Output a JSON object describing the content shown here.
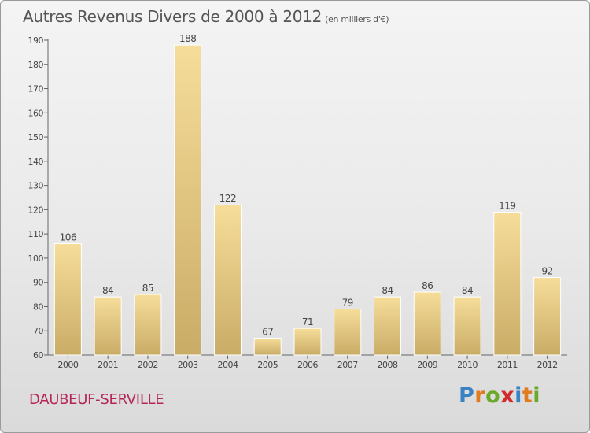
{
  "title": "Autres Revenus Divers de 2000 à 2012",
  "subtitle": "(en milliers d'€)",
  "town": "DAUBEUF-SERVILLE",
  "logo": {
    "text": "Proxiti",
    "letters": [
      {
        "ch": "P",
        "color": "#3a82c4"
      },
      {
        "ch": "r",
        "color": "#e07b20"
      },
      {
        "ch": "o",
        "color": "#6aaa2a"
      },
      {
        "ch": "x",
        "color": "#d02a2a"
      },
      {
        "ch": "i",
        "color": "#3a82c4"
      },
      {
        "ch": "t",
        "color": "#e07b20"
      },
      {
        "ch": "i",
        "color": "#6aaa2a"
      }
    ]
  },
  "colors": {
    "bar_top": "#f6dd9a",
    "bar_bottom": "#c9ac66",
    "town": "#b5265a"
  },
  "chart_data": {
    "type": "bar",
    "categories": [
      "2000",
      "2001",
      "2002",
      "2003",
      "2004",
      "2005",
      "2006",
      "2007",
      "2008",
      "2009",
      "2010",
      "2011",
      "2012"
    ],
    "values": [
      106,
      84,
      85,
      188,
      122,
      67,
      71,
      79,
      84,
      86,
      84,
      119,
      92
    ],
    "ylim": [
      60,
      190
    ],
    "yticks": [
      60,
      70,
      80,
      90,
      100,
      110,
      120,
      130,
      140,
      150,
      160,
      170,
      180,
      190
    ],
    "grid": false
  }
}
